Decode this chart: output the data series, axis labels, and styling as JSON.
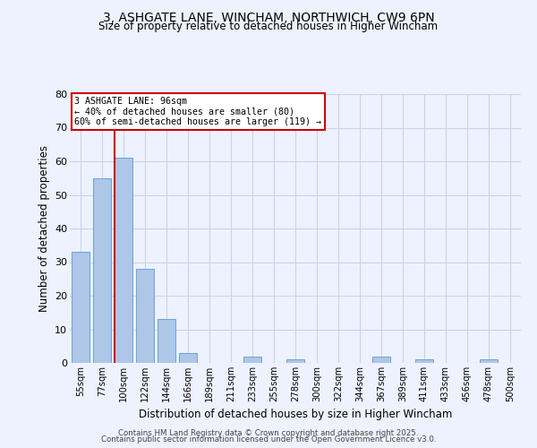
{
  "title": "3, ASHGATE LANE, WINCHAM, NORTHWICH, CW9 6PN",
  "subtitle": "Size of property relative to detached houses in Higher Wincham",
  "xlabel": "Distribution of detached houses by size in Higher Wincham",
  "ylabel": "Number of detached properties",
  "bin_labels": [
    "55sqm",
    "77sqm",
    "100sqm",
    "122sqm",
    "144sqm",
    "166sqm",
    "189sqm",
    "211sqm",
    "233sqm",
    "255sqm",
    "278sqm",
    "300sqm",
    "322sqm",
    "344sqm",
    "367sqm",
    "389sqm",
    "411sqm",
    "433sqm",
    "456sqm",
    "478sqm",
    "500sqm"
  ],
  "bin_values": [
    33,
    55,
    61,
    28,
    13,
    3,
    0,
    0,
    2,
    0,
    1,
    0,
    0,
    0,
    2,
    0,
    1,
    0,
    0,
    1,
    0
  ],
  "bar_color": "#aec6e8",
  "bar_edgecolor": "#5a9ad4",
  "vline_x_bin": 2,
  "vline_color": "#cc0000",
  "annotation_title": "3 ASHGATE LANE: 96sqm",
  "annotation_line1": "← 40% of detached houses are smaller (80)",
  "annotation_line2": "60% of semi-detached houses are larger (119) →",
  "annotation_box_edgecolor": "#cc0000",
  "ylim": [
    0,
    80
  ],
  "yticks": [
    0,
    10,
    20,
    30,
    40,
    50,
    60,
    70,
    80
  ],
  "background_color": "#eef2ff",
  "grid_color": "#c8d4e8",
  "footer1": "Contains HM Land Registry data © Crown copyright and database right 2025.",
  "footer2": "Contains public sector information licensed under the Open Government Licence v3.0."
}
